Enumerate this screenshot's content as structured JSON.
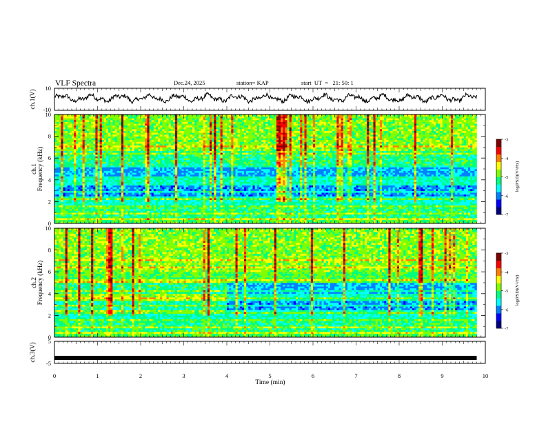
{
  "header": {
    "title": "VLF Spectra",
    "date": "Dec.24, 2025",
    "station": "station= KAP",
    "start": "start  UT  =   21: 50: 1"
  },
  "colors": {
    "scale": [
      "#000080",
      "#0000ff",
      "#0080ff",
      "#00ffff",
      "#00ff80",
      "#80ff00",
      "#ffff00",
      "#ff8000",
      "#ff0000",
      "#800000"
    ],
    "axis": "#000000",
    "waveform": "#000000"
  },
  "chart_data": [
    {
      "type": "line",
      "name": "ch1-waveform",
      "ylabel": "ch.1(V)",
      "ylim": [
        -10,
        10
      ],
      "yticks": [
        "10",
        "-10"
      ],
      "xlim": [
        0,
        10
      ],
      "x_end": 9.8,
      "baseline": 1,
      "amplitude": 4
    },
    {
      "type": "heatmap",
      "name": "ch1-spectrogram",
      "ylabel_top": "ch.1",
      "ylabel": "Frequency (kHz)",
      "ylim": [
        0,
        10
      ],
      "yticks": [
        "0",
        "2",
        "4",
        "6",
        "8",
        "10"
      ],
      "xlim": [
        0,
        10
      ],
      "x_end": 9.8,
      "colorbar": {
        "label": "log(PSD)(V²/Hz)",
        "range": [
          -7,
          -3
        ],
        "ticks": [
          "-3",
          "-4",
          "-5",
          "-6",
          "-7"
        ]
      },
      "bands": [
        {
          "f0": 0.0,
          "f1": 0.5,
          "level": 4.5
        },
        {
          "f0": 0.5,
          "f1": 1.5,
          "level": 4.0
        },
        {
          "f0": 1.5,
          "f1": 2.5,
          "level": 3.5
        },
        {
          "f0": 2.5,
          "f1": 3.6,
          "level": 2.2
        },
        {
          "f0": 3.6,
          "f1": 4.2,
          "level": 3.6
        },
        {
          "f0": 4.2,
          "f1": 5.4,
          "level": 2.4
        },
        {
          "f0": 5.4,
          "f1": 6.6,
          "level": 4.0
        },
        {
          "f0": 6.6,
          "f1": 10.0,
          "level": 5.0
        }
      ]
    },
    {
      "type": "heatmap",
      "name": "ch2-spectrogram",
      "ylabel_top": "ch.2",
      "ylabel": "Frequency (kHz)",
      "ylim": [
        0,
        10
      ],
      "yticks": [
        "0",
        "2",
        "4",
        "6",
        "8",
        "10"
      ],
      "xlim": [
        0,
        10
      ],
      "x_end": 9.8,
      "colorbar": {
        "label": "log(PSD)(V²/Hz)",
        "range": [
          -7,
          -3
        ],
        "ticks": [
          "-3",
          "-4",
          "-5",
          "-6",
          "-7"
        ]
      },
      "bands": [
        {
          "f0": 0.0,
          "f1": 0.5,
          "level": 4.5
        },
        {
          "f0": 0.5,
          "f1": 1.5,
          "level": 4.0
        },
        {
          "f0": 1.5,
          "f1": 2.5,
          "level": 3.5
        },
        {
          "f0": 2.5,
          "f1": 3.4,
          "level": 2.2
        },
        {
          "f0": 3.4,
          "f1": 4.0,
          "level": 3.6
        },
        {
          "f0": 4.0,
          "f1": 5.0,
          "level": 2.4
        },
        {
          "f0": 5.0,
          "f1": 6.0,
          "level": 4.5
        },
        {
          "f0": 6.0,
          "f1": 10.0,
          "level": 5.0
        }
      ],
      "transition_min": 4.0
    },
    {
      "type": "line",
      "name": "ch3-waveform",
      "ylabel": "ch.3(V)",
      "ylim": [
        -5,
        5
      ],
      "yticks": [
        "5",
        "-5"
      ],
      "xlim": [
        0,
        10
      ],
      "x_end": 9.8,
      "value": -2.5,
      "xlabel": "Time (min)",
      "xticks": [
        "0",
        "1",
        "2",
        "3",
        "4",
        "5",
        "6",
        "7",
        "8",
        "9",
        "10"
      ]
    }
  ]
}
